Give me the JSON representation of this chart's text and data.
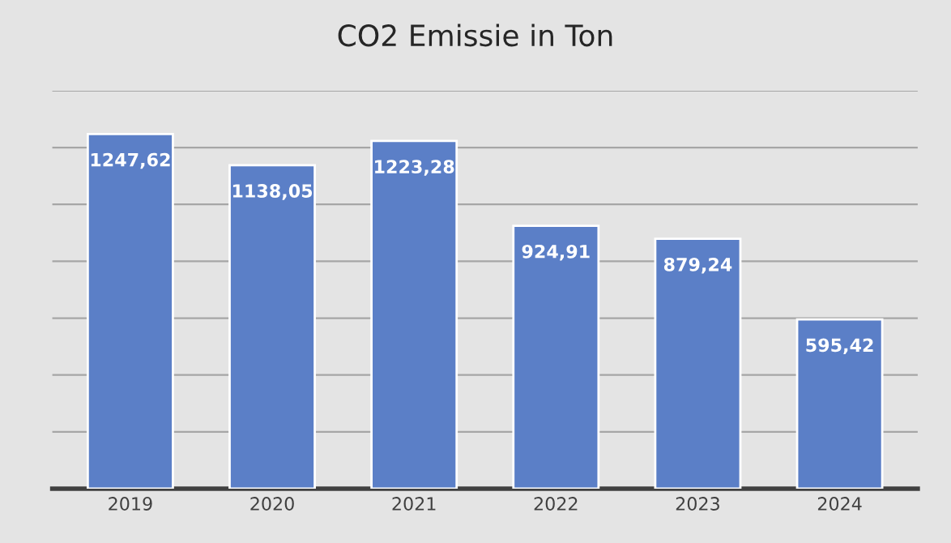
{
  "chart_data": {
    "type": "bar",
    "title": "CO2 Emissie in Ton",
    "categories": [
      "2019",
      "2020",
      "2021",
      "2022",
      "2023",
      "2024"
    ],
    "values": [
      1247.62,
      1138.05,
      1223.28,
      924.91,
      879.24,
      595.42
    ],
    "value_labels": [
      "1247,62",
      "1138,05",
      "1223,28",
      "924,91",
      "879,24",
      "595,42"
    ],
    "color": "#5b7fc7",
    "ylim": [
      0,
      1400
    ],
    "yticks": [
      {
        "value": 0,
        "label": null
      },
      {
        "value": 200,
        "label": null
      },
      {
        "value": 400,
        "label": null
      },
      {
        "value": 600,
        "label": null
      },
      {
        "value": 800,
        "label": null
      },
      {
        "value": 1000,
        "label": null
      },
      {
        "value": 1200,
        "label": null
      },
      {
        "value": 1400,
        "label": null
      }
    ],
    "grid": "y",
    "tick_labels": "x"
  }
}
